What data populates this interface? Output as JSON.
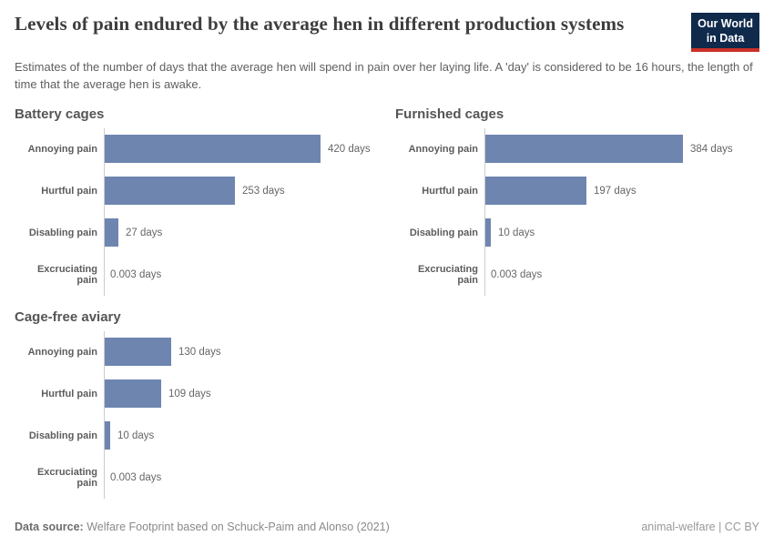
{
  "header": {
    "title": "Levels of pain endured by the average hen in different production systems",
    "subtitle": "Estimates of the number of days that the average hen will spend in pain over her laying life. A 'day' is considered to be 16 hours, the length of time that the average hen is awake.",
    "logo": {
      "line1": "Our World",
      "line2": "in Data"
    }
  },
  "chart_data": [
    {
      "type": "bar",
      "orientation": "horizontal",
      "title": "Battery cages",
      "categories": [
        "Annoying pain",
        "Hurtful pain",
        "Disabling pain",
        "Excruciating pain"
      ],
      "values": [
        420,
        253,
        27,
        0.003
      ],
      "value_labels": [
        "420 days",
        "253 days",
        "27 days",
        "0.003 days"
      ],
      "unit": "days",
      "xmax_days": 420,
      "grid": false,
      "legend": "none"
    },
    {
      "type": "bar",
      "orientation": "horizontal",
      "title": "Furnished cages",
      "categories": [
        "Annoying pain",
        "Hurtful pain",
        "Disabling pain",
        "Excruciating pain"
      ],
      "values": [
        384,
        197,
        10,
        0.003
      ],
      "value_labels": [
        "384 days",
        "197 days",
        "10 days",
        "0.003 days"
      ],
      "unit": "days",
      "xmax_days": 420,
      "grid": false,
      "legend": "none"
    },
    {
      "type": "bar",
      "orientation": "horizontal",
      "title": "Cage-free aviary",
      "categories": [
        "Annoying pain",
        "Hurtful pain",
        "Disabling pain",
        "Excruciating pain"
      ],
      "values": [
        130,
        109,
        10,
        0.003
      ],
      "value_labels": [
        "130 days",
        "109 days",
        "10 days",
        "0.003 days"
      ],
      "unit": "days",
      "xmax_days": 420,
      "grid": false,
      "legend": "none"
    }
  ],
  "style": {
    "bar_color": "#6e85b0",
    "logo_bg": "#102a4c",
    "logo_accent": "#cc3029",
    "axis_color": "#cccccc"
  },
  "footer": {
    "source_prefix": "Data source:",
    "source_text": " Welfare Footprint based on Schuck-Paim and Alonso (2021)",
    "tag": "animal-welfare",
    "separator": " | ",
    "license": "CC BY"
  }
}
